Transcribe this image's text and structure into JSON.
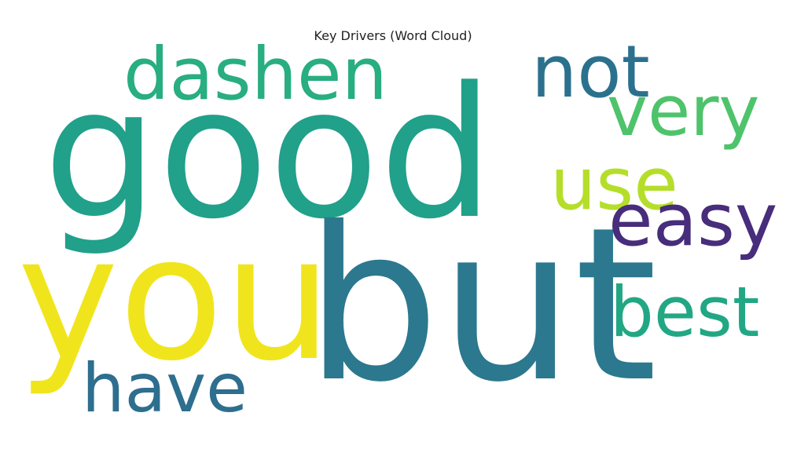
{
  "chart_data": {
    "type": "word-cloud",
    "title": "Key Drivers (Word Cloud)",
    "words": [
      {
        "text": "good",
        "color": "#21a08a"
      },
      {
        "text": "but",
        "color": "#2c788e"
      },
      {
        "text": "you",
        "color": "#f0e51c"
      },
      {
        "text": "dashen",
        "color": "#28ae80"
      },
      {
        "text": "not",
        "color": "#2b718e"
      },
      {
        "text": "very",
        "color": "#4ec36b"
      },
      {
        "text": "use",
        "color": "#b5de2b"
      },
      {
        "text": "easy",
        "color": "#472d7b"
      },
      {
        "text": "best",
        "color": "#22a784"
      },
      {
        "text": "have",
        "color": "#2e6e8e"
      }
    ]
  }
}
